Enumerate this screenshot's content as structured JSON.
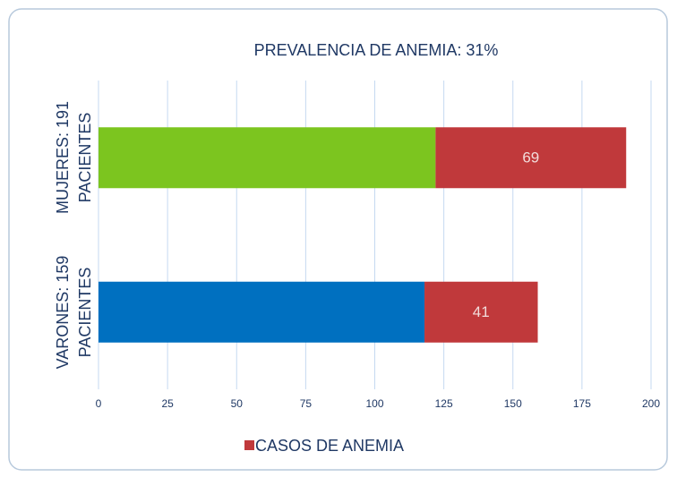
{
  "chart_data": {
    "type": "stacked_barh",
    "title": "PREVALENCIA DE ANEMIA: 31%",
    "categories": [
      "MUJERES: 191 PACIENTES",
      "VARONES: 159 PACIENTES"
    ],
    "series": [
      {
        "colors": [
          "#7cc51f",
          "#0070c0"
        ],
        "values": [
          122,
          118
        ]
      },
      {
        "name": "CASOS DE ANEMIA",
        "color": "#c0393b",
        "values": [
          69,
          41
        ],
        "value_labels": [
          "69",
          "41"
        ]
      }
    ],
    "xlim": [
      0,
      200
    ],
    "xticks": [
      0,
      25,
      50,
      75,
      100,
      125,
      150,
      175,
      200
    ],
    "grid": true,
    "legend": "bottom"
  }
}
